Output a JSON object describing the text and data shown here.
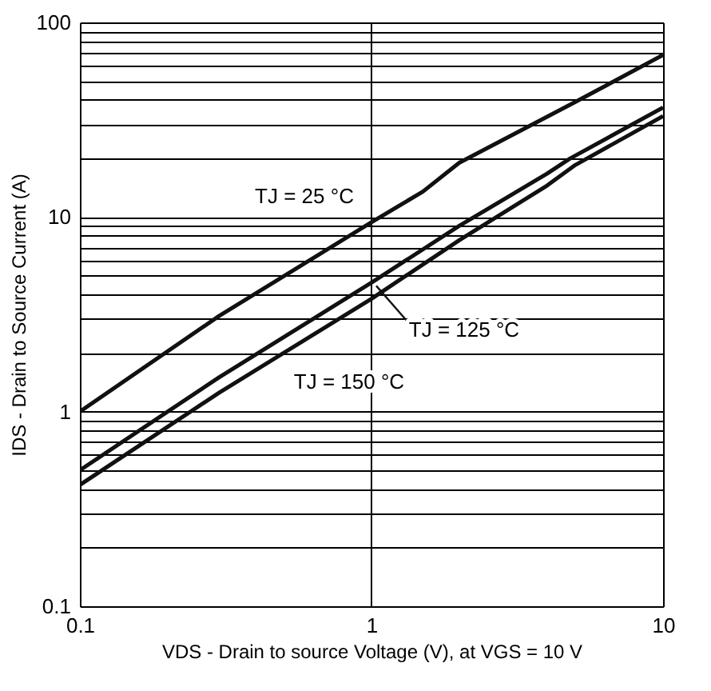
{
  "chart_data": {
    "type": "line",
    "xlabel": "VDS - Drain to source Voltage  (V),  at VGS = 10 V",
    "ylabel": "IDS - Drain to Source Current  (A)",
    "log": "xy",
    "grid": true,
    "marker": "none",
    "line_style": "solid",
    "xlim": [
      0.1,
      10
    ],
    "ylim": [
      0.1,
      100
    ],
    "xticks": [
      0.1,
      1,
      10
    ],
    "yticks": [
      0.1,
      {
        "value": 0.2,
        "label": null
      },
      {
        "value": 0.3,
        "label": null
      },
      {
        "value": 0.4,
        "label": null
      },
      {
        "value": 0.5,
        "label": null
      },
      {
        "value": 0.6,
        "label": null
      },
      {
        "value": 0.7,
        "label": null
      },
      {
        "value": 0.8,
        "label": null
      },
      {
        "value": 0.9,
        "label": null
      },
      1,
      {
        "value": 2,
        "label": null
      },
      {
        "value": 3,
        "label": null
      },
      {
        "value": 4,
        "label": null
      },
      {
        "value": 5,
        "label": null
      },
      {
        "value": 6,
        "label": null
      },
      {
        "value": 7,
        "label": null
      },
      {
        "value": 8,
        "label": null
      },
      {
        "value": 9,
        "label": null
      },
      10,
      {
        "value": 20,
        "label": null
      },
      {
        "value": 30,
        "label": null
      },
      {
        "value": 40,
        "label": null
      },
      {
        "value": 50,
        "label": null
      },
      {
        "value": 60,
        "label": null
      },
      {
        "value": 70,
        "label": null
      },
      {
        "value": 80,
        "label": null
      },
      {
        "value": 90,
        "label": null
      },
      100
    ],
    "series": [
      {
        "name": "TJ = 25 °C",
        "color": "#111111",
        "x": [
          0.1,
          0.3,
          1,
          1.5,
          2,
          5,
          10
        ],
        "values": [
          1.0,
          3.1,
          9.4,
          13.5,
          19,
          39,
          68
        ]
      },
      {
        "name": "TJ = 125 °C",
        "color": "#111111",
        "x": [
          0.1,
          0.3,
          1,
          2,
          4,
          4.8,
          10
        ],
        "values": [
          0.5,
          1.5,
          4.6,
          9,
          16.7,
          20,
          36.5
        ]
      },
      {
        "name": "TJ = 150 °C",
        "color": "#111111",
        "x": [
          0.1,
          0.3,
          1,
          2,
          4,
          5,
          10
        ],
        "values": [
          0.42,
          1.25,
          3.8,
          7.6,
          14.5,
          18.5,
          33
        ]
      }
    ]
  }
}
